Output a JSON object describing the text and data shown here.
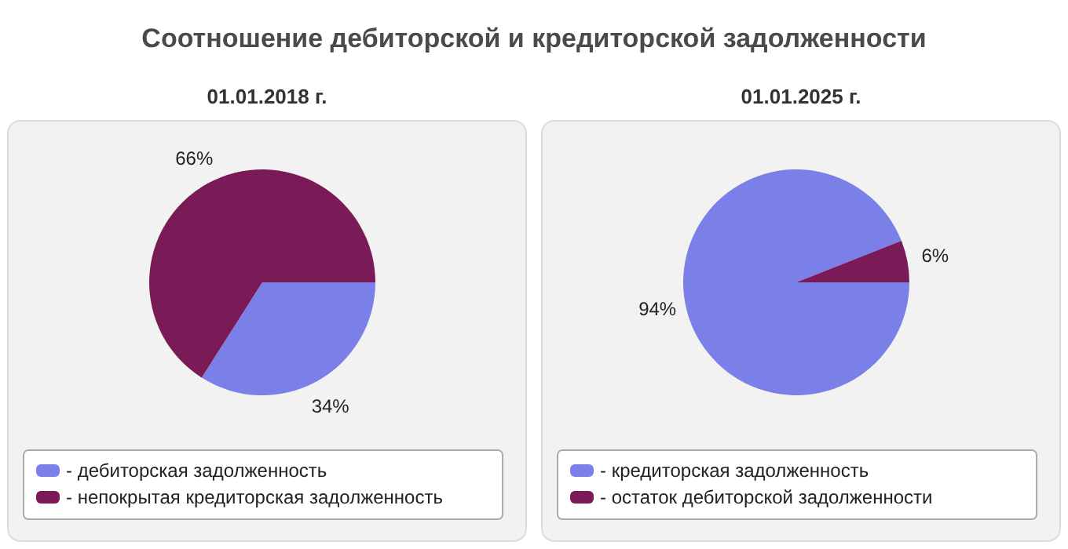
{
  "chart_data": [
    {
      "type": "pie",
      "title": "Соотношение дебиторской и кредиторской задолженности",
      "subtitle": "01.01.2018 г.",
      "categories": [
        "- дебиторская задолженность",
        "- непокрытая кредиторская задолженность"
      ],
      "values": [
        34,
        66
      ],
      "colors": [
        "#7b7fe8",
        "#7a1a56"
      ],
      "value_labels": [
        "34%",
        "66%"
      ],
      "legend": "bottom"
    },
    {
      "type": "pie",
      "subtitle": "01.01.2025 г.",
      "categories": [
        "- кредиторская задолженность",
        "- остаток дебиторской задолженности"
      ],
      "values": [
        94,
        6
      ],
      "colors": [
        "#7b7fe8",
        "#7a1a56"
      ],
      "value_labels": [
        "94%",
        "6%"
      ],
      "legend": "bottom"
    }
  ]
}
